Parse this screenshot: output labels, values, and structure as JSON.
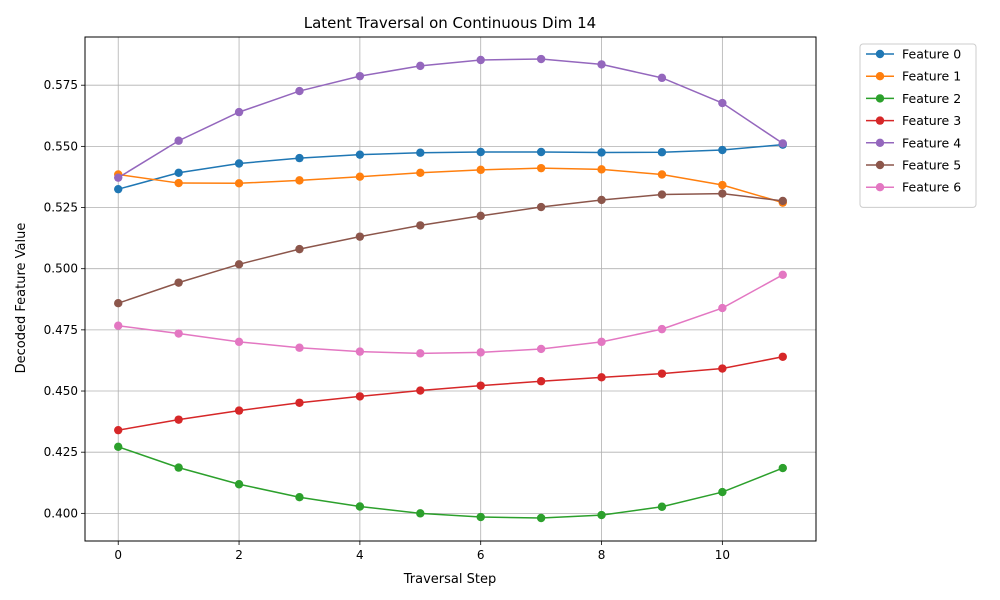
{
  "chart_data": {
    "type": "line",
    "title": "Latent Traversal on Continuous Dim 14",
    "xlabel": "Traversal Step",
    "ylabel": "Decoded Feature Value",
    "x": [
      0,
      1,
      2,
      3,
      4,
      5,
      6,
      7,
      8,
      9,
      10,
      11
    ],
    "xlim": [
      -0.55,
      11.55
    ],
    "ylim": [
      0.3887,
      0.5947
    ],
    "xticks": [
      0,
      2,
      4,
      6,
      8,
      10
    ],
    "yticks": [
      0.4,
      0.425,
      0.45,
      0.475,
      0.5,
      0.525,
      0.55,
      0.575
    ],
    "ytick_labels": [
      "0.400",
      "0.425",
      "0.450",
      "0.475",
      "0.500",
      "0.525",
      "0.550",
      "0.575"
    ],
    "grid": true,
    "legend_position": "outside-top-right",
    "series": [
      {
        "name": "Feature 0",
        "color": "#1f77b4",
        "values": [
          0.5325,
          0.5392,
          0.543,
          0.5452,
          0.5466,
          0.5474,
          0.5477,
          0.5477,
          0.5475,
          0.5476,
          0.5485,
          0.5507
        ]
      },
      {
        "name": "Feature 1",
        "color": "#ff7f0e",
        "values": [
          0.5385,
          0.535,
          0.5349,
          0.5361,
          0.5376,
          0.5392,
          0.5404,
          0.5411,
          0.5406,
          0.5385,
          0.5342,
          0.527
        ]
      },
      {
        "name": "Feature 2",
        "color": "#2ca02c",
        "values": [
          0.4272,
          0.4187,
          0.4119,
          0.4066,
          0.4028,
          0.4,
          0.3985,
          0.3981,
          0.3993,
          0.4027,
          0.4087,
          0.4185
        ]
      },
      {
        "name": "Feature 3",
        "color": "#d62728",
        "values": [
          0.434,
          0.4383,
          0.442,
          0.4452,
          0.4478,
          0.4502,
          0.4522,
          0.454,
          0.4556,
          0.4571,
          0.4592,
          0.464
        ]
      },
      {
        "name": "Feature 4",
        "color": "#9467bd",
        "values": [
          0.5372,
          0.5523,
          0.564,
          0.5726,
          0.5787,
          0.5829,
          0.5853,
          0.5857,
          0.5835,
          0.578,
          0.5677,
          0.5512
        ]
      },
      {
        "name": "Feature 5",
        "color": "#8c564b",
        "values": [
          0.4859,
          0.4943,
          0.5018,
          0.508,
          0.5131,
          0.5177,
          0.5216,
          0.5252,
          0.5281,
          0.5303,
          0.5307,
          0.5277
        ]
      },
      {
        "name": "Feature 6",
        "color": "#e377c2",
        "values": [
          0.4767,
          0.4735,
          0.4701,
          0.4677,
          0.4661,
          0.4654,
          0.4658,
          0.4672,
          0.4701,
          0.4753,
          0.4839,
          0.4975
        ]
      }
    ]
  }
}
